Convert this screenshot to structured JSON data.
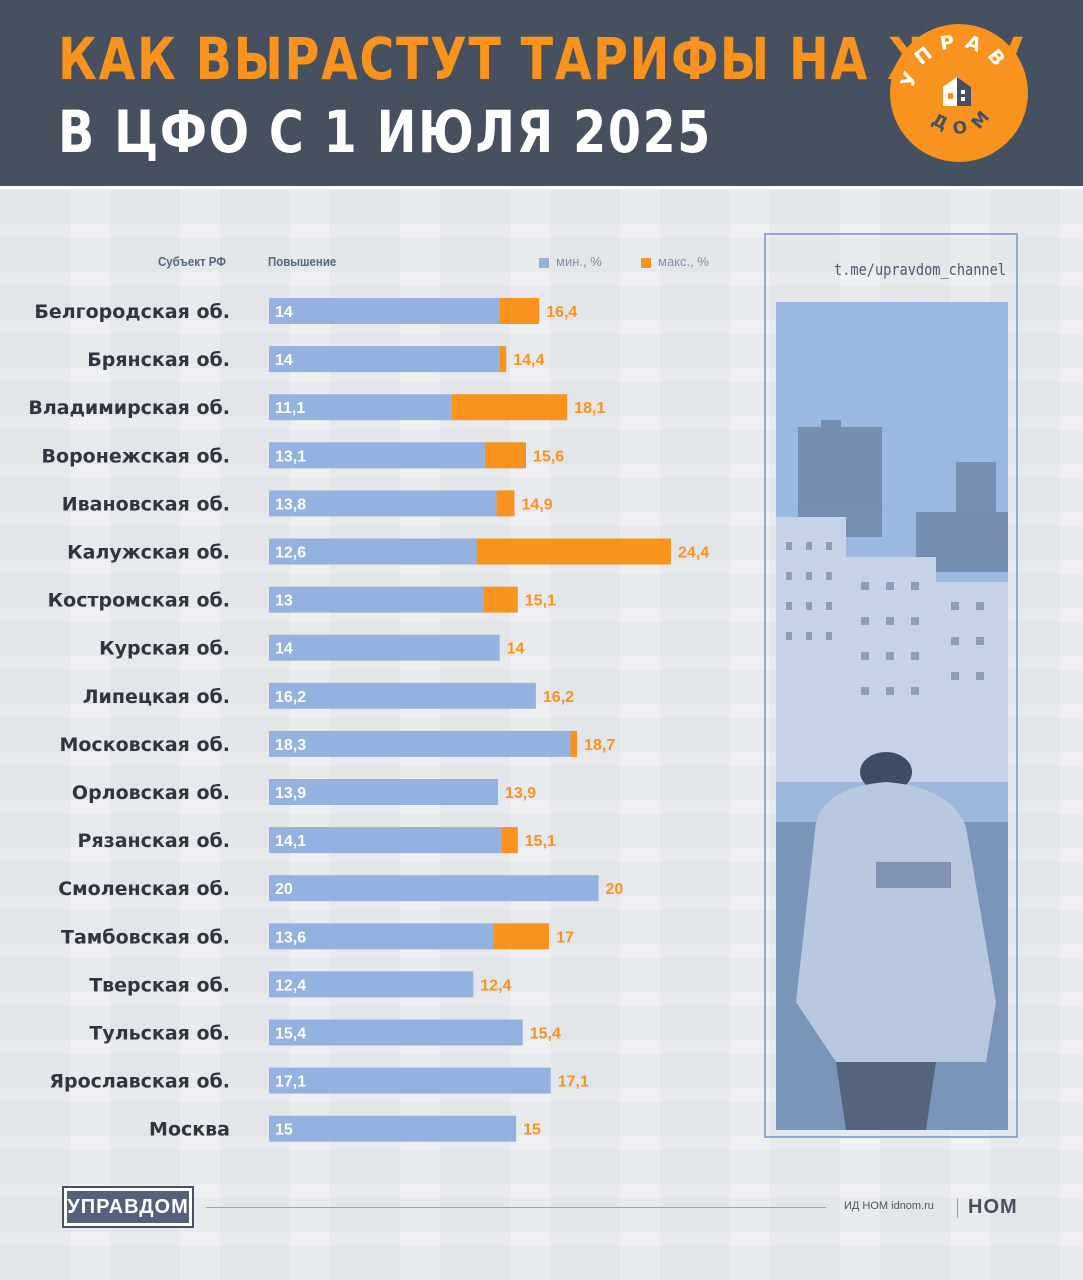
{
  "header": {
    "title_line1": "КАК ВЫРАСТУТ ТАРИФЫ НА ЖКУ",
    "title_line2": "В ЦФО С 1 ИЮЛЯ 2025",
    "logo_top": "УПРАВ",
    "logo_bottom": "ДОМ"
  },
  "colors": {
    "min_bar": "#94b2e0",
    "max_bar": "#f7931e",
    "header_bg": "#46505e",
    "label_text": "#2f3642"
  },
  "chart_data": {
    "type": "bar",
    "orientation": "horizontal",
    "column_header_region": "Субъект РФ",
    "column_header_value": "Повышение",
    "legend_position": "top-right",
    "series": [
      {
        "name": "мин., %",
        "values": [
          14,
          14,
          11.1,
          13.1,
          13.8,
          12.6,
          13,
          14,
          16.2,
          18.3,
          13.9,
          14.1,
          20,
          13.6,
          12.4,
          15.4,
          17.1,
          15
        ]
      },
      {
        "name": "макс., %",
        "values": [
          16.4,
          14.4,
          18.1,
          15.6,
          14.9,
          24.4,
          15.1,
          14,
          16.2,
          18.7,
          13.9,
          15.1,
          20,
          17,
          12.4,
          15.4,
          17.1,
          15
        ]
      }
    ],
    "categories": [
      "Белгородская об.",
      "Брянская об.",
      "Владимирская об.",
      "Воронежская об.",
      "Ивановская об.",
      "Калужская об.",
      "Костромская об.",
      "Курская об.",
      "Липецкая об.",
      "Московская об.",
      "Орловская об.",
      "Рязанская об.",
      "Смоленская об.",
      "Тамбовская об.",
      "Тверская об.",
      "Тульская об.",
      "Ярославская об.",
      "Москва"
    ],
    "min_labels": [
      "14",
      "14",
      "11,1",
      "13,1",
      "13,8",
      "12,6",
      "13",
      "14",
      "16,2",
      "18,3",
      "13,9",
      "14,1",
      "20",
      "13,6",
      "12,4",
      "15,4",
      "17,1",
      "15"
    ],
    "max_labels": [
      "16,4",
      "14,4",
      "18,1",
      "15,6",
      "14,9",
      "24,4",
      "15,1",
      "14",
      "16,2",
      "18,7",
      "13,9",
      "15,1",
      "20",
      "17",
      "12,4",
      "15,4",
      "17,1",
      "15"
    ],
    "xlim": [
      0,
      25
    ]
  },
  "sidebar": {
    "url": "t.me/upravdom_channel"
  },
  "footer": {
    "logo_text": "УПРАВДОМ",
    "source": "ИД НОМ idnom.ru",
    "brand": "НОМ"
  }
}
